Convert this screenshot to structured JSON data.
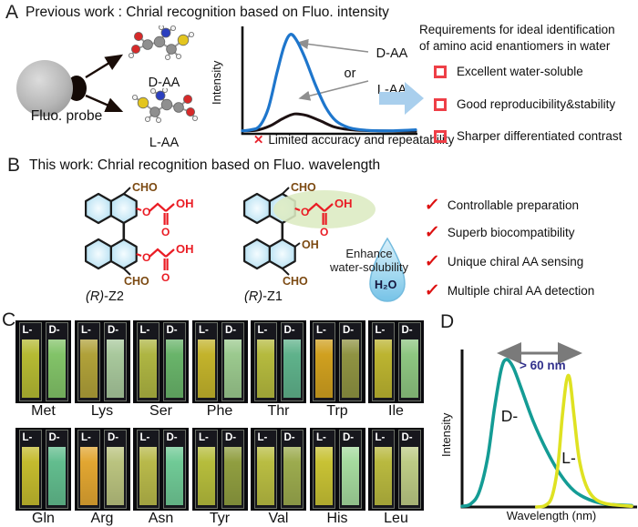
{
  "icons": {
    "check": "✓",
    "cross": "✕"
  },
  "panelA": {
    "label": "A",
    "title": "Previous work : Chrial recognition based on Fluo. intensity",
    "probe_label": "Fluo. probe",
    "d_aa_label": "D-AA",
    "l_aa_label": "L-AA",
    "plot": {
      "ylabel": "Intensity",
      "annotation_top": "D-AA",
      "annotation_mid": "or",
      "annotation_bottom": "L-AA"
    },
    "caption": "Limited accuracy and repeatability",
    "requirements": {
      "heading_line1": "Requirements for ideal identification",
      "heading_line2": "of amino acid enantiomers in water",
      "items": [
        "Excellent water-soluble",
        "Good reproducibility&stability",
        "Sharper differentiated contrast"
      ]
    }
  },
  "panelB": {
    "label": "B",
    "title": "This work: Chrial recognition based on Fluo. wavelength",
    "z2": {
      "name_prefix": "(R)",
      "name_suffix": "-Z2",
      "cho_top": "CHO",
      "cho_bottom": "CHO",
      "o_top": "O",
      "o_bottom": "O",
      "carbonyl_top": "O",
      "carbonyl_bottom": "O",
      "oh_top": "OH",
      "oh_bottom": "OH"
    },
    "z1": {
      "name_prefix": "(R)",
      "name_suffix": "-Z1",
      "cho_top": "CHO",
      "cho_bottom": "CHO",
      "o": "O",
      "carbonyl": "O",
      "oh_chain": "OH",
      "oh_ring": "OH"
    },
    "enhance_line1": "Enhance",
    "enhance_line2": "water-solubility",
    "water_label": "H₂O",
    "features": [
      "Controllable preparation",
      "Superb biocompatibility",
      "Unique chiral AA  sensing",
      "Multiple chiral AA detection"
    ]
  },
  "panelC": {
    "label": "C",
    "l_label": "L-",
    "d_label": "D-",
    "rows": [
      [
        {
          "name": "Met",
          "l_color": "#b5ba33",
          "d_color": "#82c368"
        },
        {
          "name": "Lys",
          "l_color": "#b0a139",
          "d_color": "#a8c89c"
        },
        {
          "name": "Ser",
          "l_color": "#aeb542",
          "d_color": "#69b46a"
        },
        {
          "name": "Phe",
          "l_color": "#c3b32b",
          "d_color": "#9bc98e"
        },
        {
          "name": "Thr",
          "l_color": "#b5ba3e",
          "d_color": "#5fb28b"
        },
        {
          "name": "Trp",
          "l_color": "#d0a01f",
          "d_color": "#8f9342"
        },
        {
          "name": "Ile",
          "l_color": "#bcb430",
          "d_color": "#8ec681"
        }
      ],
      [
        {
          "name": "Gln",
          "l_color": "#c4bb2e",
          "d_color": "#62bd8e"
        },
        {
          "name": "Arg",
          "l_color": "#e2a631",
          "d_color": "#bac37f"
        },
        {
          "name": "Asn",
          "l_color": "#b8b94a",
          "d_color": "#70ca96"
        },
        {
          "name": "Tyr",
          "l_color": "#b6bd3c",
          "d_color": "#909e40"
        },
        {
          "name": "Val",
          "l_color": "#b9bd42",
          "d_color": "#9cab4e"
        },
        {
          "name": "His",
          "l_color": "#c8c234",
          "d_color": "#a5da9e"
        },
        {
          "name": "Leu",
          "l_color": "#b9b93f",
          "d_color": "#bdcb85"
        }
      ]
    ]
  },
  "panelD": {
    "label": "D",
    "annotation": "> 60 nm",
    "d_label": "D-",
    "l_label": "L-",
    "ylabel": "Intensity",
    "xlabel": "Wavelength (nm)"
  },
  "colors": {
    "accent_red": "#e8232d",
    "checkbox_red": "#ee3f47",
    "flow_arrow_blue": "#a9cfed",
    "annotation_navy": "#31308c",
    "cho_brown": "#7c4a12",
    "structure_red": "#ea1c24",
    "highlight_green": "#dcebc2"
  },
  "chart_data": [
    {
      "id": "fluorescence-intensity-schematic",
      "type": "line",
      "title": "",
      "xlabel": "",
      "ylabel": "Intensity",
      "note": "schematic spectra, unlabeled axes, normalized 0-1 coordinates",
      "series": [
        {
          "name": "strong response (D-AA or L-AA)",
          "color": "#1e76cc",
          "points": [
            [
              0,
              0.03
            ],
            [
              0.05,
              0.04
            ],
            [
              0.1,
              0.08
            ],
            [
              0.15,
              0.26
            ],
            [
              0.2,
              0.62
            ],
            [
              0.24,
              0.88
            ],
            [
              0.275,
              1.0
            ],
            [
              0.31,
              0.95
            ],
            [
              0.36,
              0.77
            ],
            [
              0.42,
              0.5
            ],
            [
              0.48,
              0.27
            ],
            [
              0.54,
              0.13
            ],
            [
              0.62,
              0.06
            ],
            [
              0.72,
              0.035
            ],
            [
              0.85,
              0.03
            ],
            [
              1,
              0.04
            ]
          ]
        },
        {
          "name": "weak response (D-AA or L-AA)",
          "color": "#1d1112",
          "points": [
            [
              0,
              0.03
            ],
            [
              0.08,
              0.035
            ],
            [
              0.16,
              0.08
            ],
            [
              0.23,
              0.15
            ],
            [
              0.3,
              0.2
            ],
            [
              0.37,
              0.185
            ],
            [
              0.45,
              0.13
            ],
            [
              0.53,
              0.07
            ],
            [
              0.63,
              0.04
            ],
            [
              0.78,
              0.03
            ],
            [
              1,
              0.025
            ]
          ]
        }
      ]
    },
    {
      "id": "wavelength-shift-schematic",
      "type": "line",
      "title": "",
      "xlabel": "Wavelength (nm)",
      "ylabel": "Intensity",
      "annotation": "> 60 nm",
      "note": "schematic emission spectra, peak separation > 60 nm, normalized 0-1 coordinates",
      "series": [
        {
          "name": "D-",
          "color": "#149c95",
          "points": [
            [
              0,
              0.005
            ],
            [
              0.05,
              0.02
            ],
            [
              0.1,
              0.1
            ],
            [
              0.15,
              0.33
            ],
            [
              0.19,
              0.66
            ],
            [
              0.23,
              0.93
            ],
            [
              0.26,
              1.0
            ],
            [
              0.3,
              0.95
            ],
            [
              0.35,
              0.8
            ],
            [
              0.42,
              0.58
            ],
            [
              0.5,
              0.38
            ],
            [
              0.58,
              0.22
            ],
            [
              0.66,
              0.11
            ],
            [
              0.75,
              0.05
            ],
            [
              0.85,
              0.02
            ],
            [
              1,
              0.01
            ]
          ]
        },
        {
          "name": "L-",
          "color": "#dfe222",
          "points": [
            [
              0.44,
              0.0
            ],
            [
              0.49,
              0.01
            ],
            [
              0.53,
              0.07
            ],
            [
              0.565,
              0.28
            ],
            [
              0.59,
              0.6
            ],
            [
              0.615,
              0.85
            ],
            [
              0.635,
              0.87
            ],
            [
              0.66,
              0.62
            ],
            [
              0.69,
              0.33
            ],
            [
              0.73,
              0.15
            ],
            [
              0.78,
              0.06
            ],
            [
              0.86,
              0.02
            ],
            [
              1,
              0.005
            ]
          ]
        }
      ]
    }
  ]
}
